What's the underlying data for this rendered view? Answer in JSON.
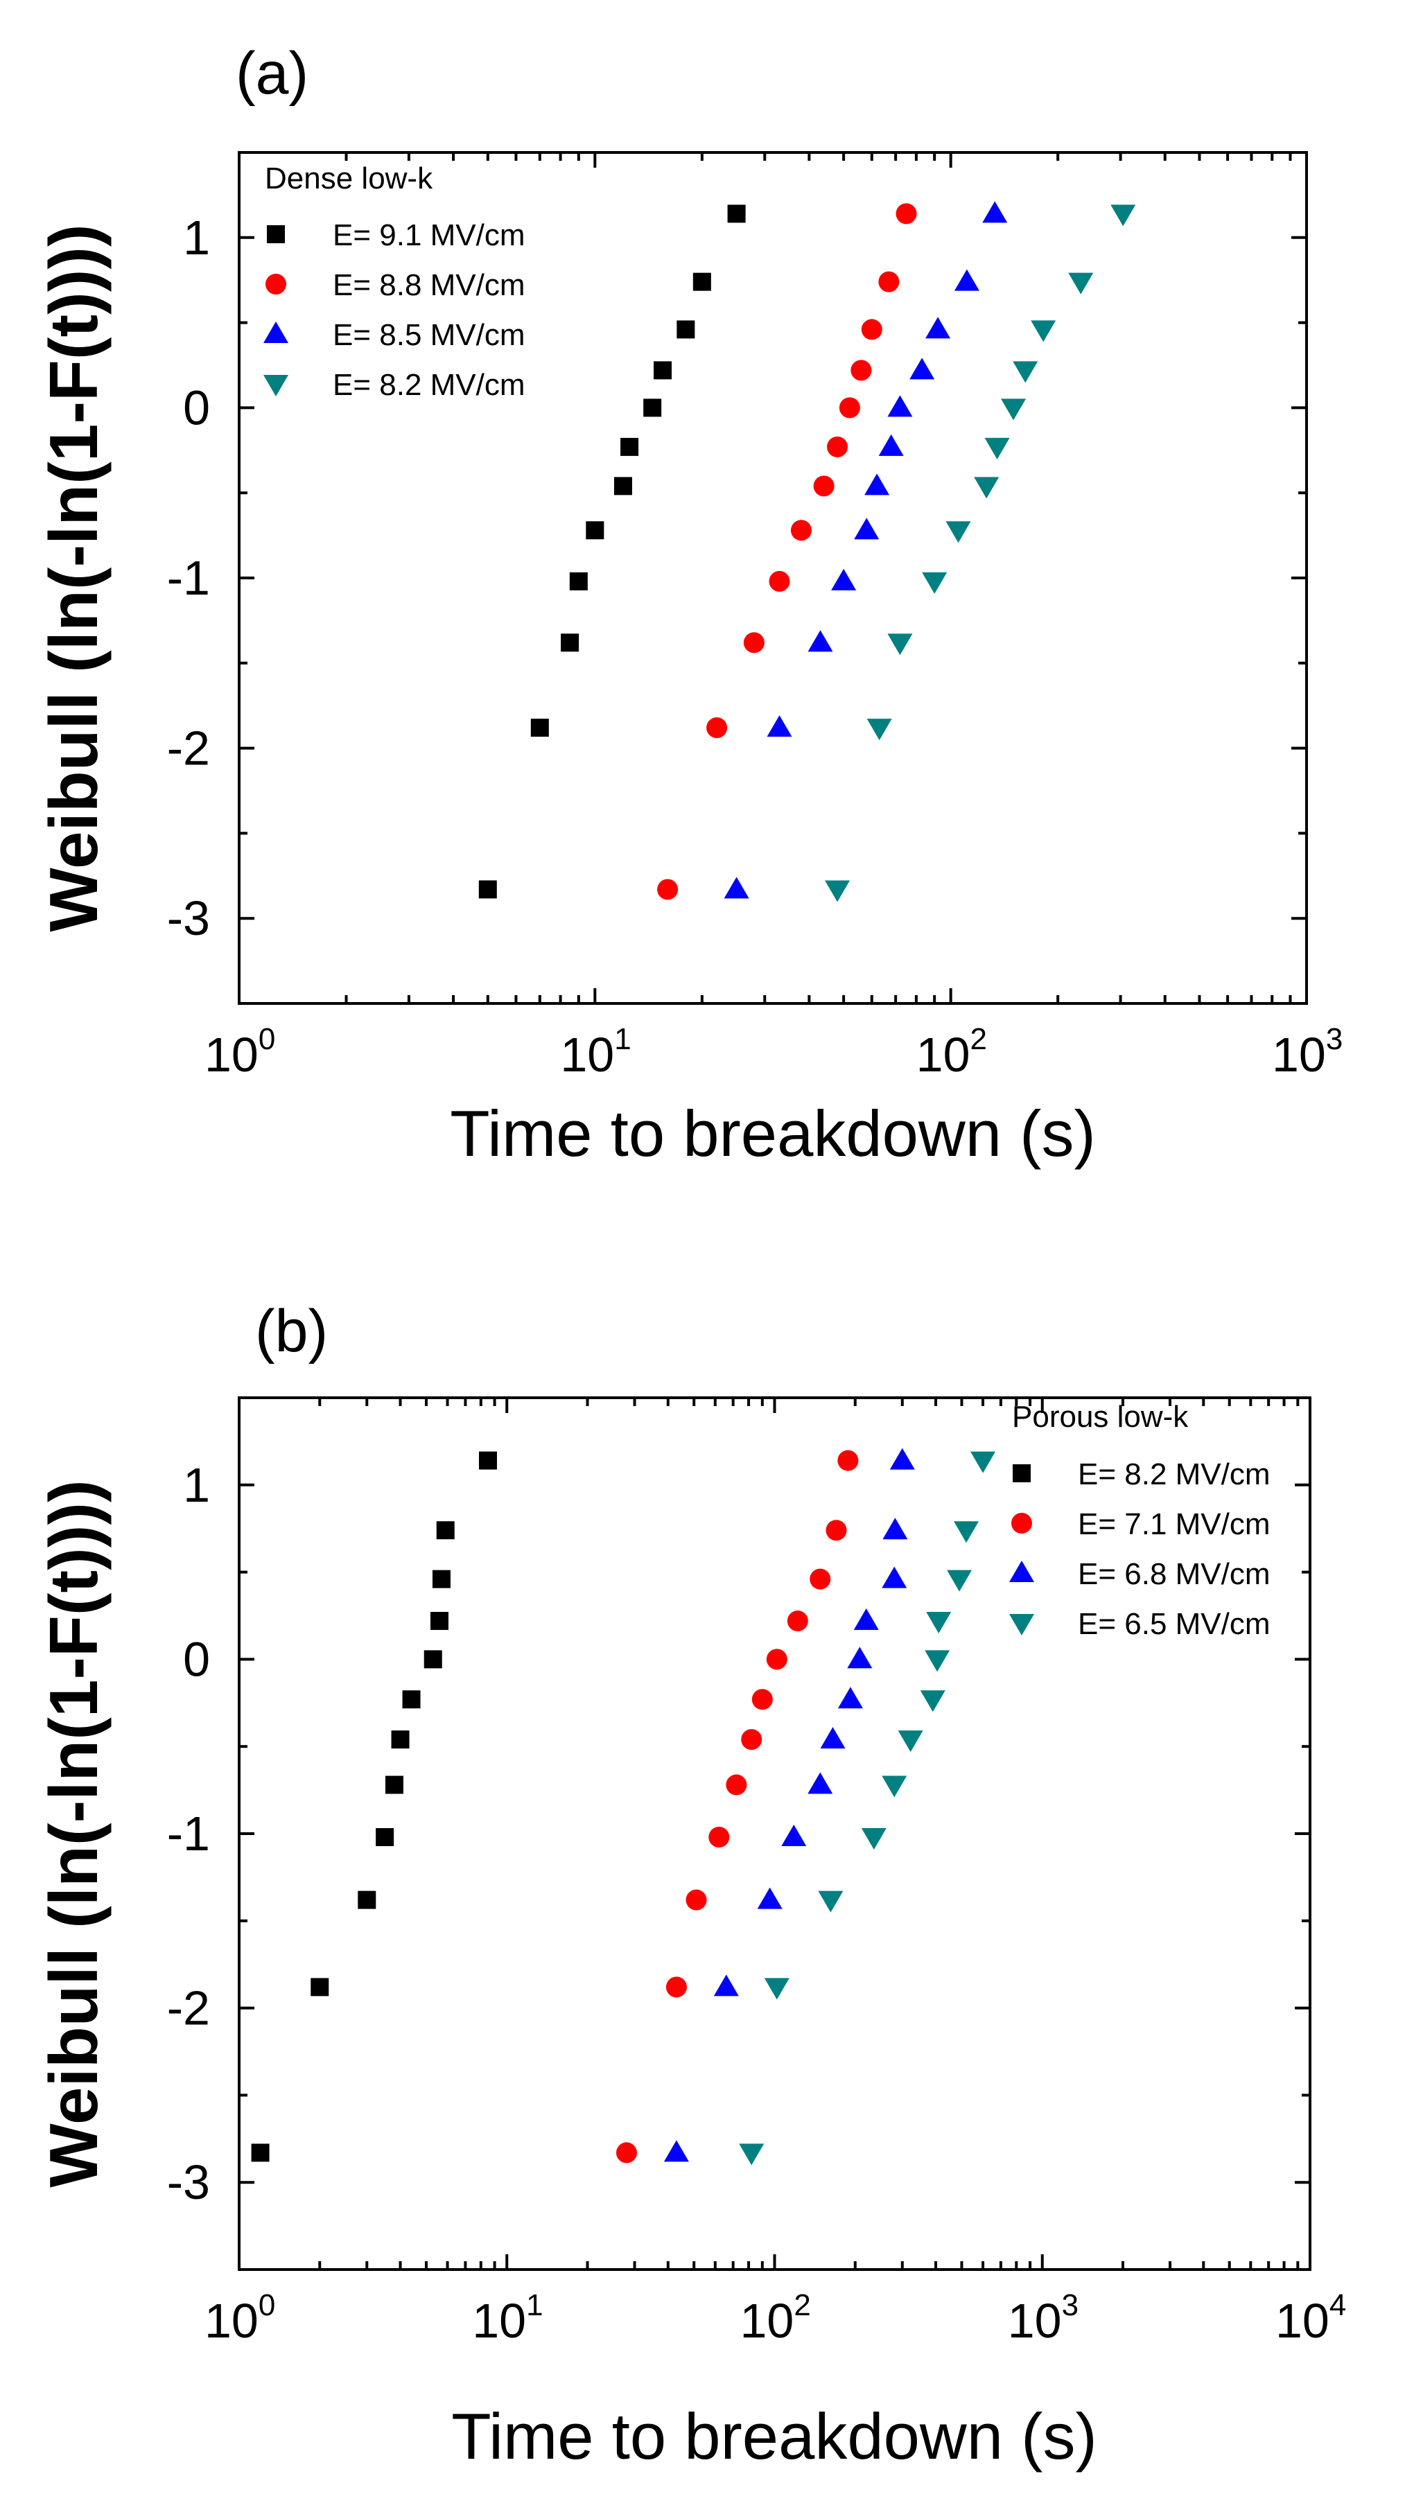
{
  "chart_data": [
    {
      "type": "scatter",
      "panel_label": "(a)",
      "xscale": "log",
      "xlim": [
        1,
        1000
      ],
      "ylim": [
        -3.5,
        1.5
      ],
      "xlabel": "Time to breakdown (s)",
      "ylabel": "Weibull (ln(-ln(1-F(t))))",
      "x_tick_labels": [
        {
          "base": "10",
          "exp": "0",
          "value": 1
        },
        {
          "base": "10",
          "exp": "1",
          "value": 10
        },
        {
          "base": "10",
          "exp": "2",
          "value": 100
        },
        {
          "base": "10",
          "exp": "3",
          "value": 1000
        }
      ],
      "y_ticks": [
        {
          "label": "1",
          "value": 1
        },
        {
          "label": "0",
          "value": 0
        },
        {
          "label": "-1",
          "value": -1
        },
        {
          "label": "-2",
          "value": -2
        },
        {
          "label": "-3",
          "value": -3
        }
      ],
      "legend_title": "Dense low-k",
      "legend_position": "top-left",
      "series": [
        {
          "name": "E= 9.1 MV/cm",
          "marker": "square",
          "color": "#000000",
          "points": [
            [
              5.0,
              -2.83
            ],
            [
              7.0,
              -1.88
            ],
            [
              8.5,
              -1.38
            ],
            [
              9.0,
              -1.02
            ],
            [
              10.0,
              -0.72
            ],
            [
              12.0,
              -0.46
            ],
            [
              12.5,
              -0.23
            ],
            [
              14.5,
              0.0
            ],
            [
              15.5,
              0.22
            ],
            [
              18.0,
              0.46
            ],
            [
              20.0,
              0.74
            ],
            [
              25.0,
              1.14
            ]
          ]
        },
        {
          "name": "E= 8.8 MV/cm",
          "marker": "circle",
          "color": "#ff0000",
          "points": [
            [
              16.0,
              -2.83
            ],
            [
              22.0,
              -1.88
            ],
            [
              28.0,
              -1.38
            ],
            [
              33.0,
              -1.02
            ],
            [
              38.0,
              -0.72
            ],
            [
              44.0,
              -0.46
            ],
            [
              48.0,
              -0.23
            ],
            [
              52.0,
              0.0
            ],
            [
              56.0,
              0.22
            ],
            [
              60.0,
              0.46
            ],
            [
              67.0,
              0.74
            ],
            [
              75.0,
              1.14
            ]
          ]
        },
        {
          "name": "E= 8.5 MV/cm",
          "marker": "triangle-up",
          "color": "#0000ff",
          "points": [
            [
              25.0,
              -2.83
            ],
            [
              33.0,
              -1.88
            ],
            [
              43.0,
              -1.38
            ],
            [
              50.0,
              -1.02
            ],
            [
              58.0,
              -0.72
            ],
            [
              62.0,
              -0.46
            ],
            [
              68.0,
              -0.23
            ],
            [
              72.0,
              0.0
            ],
            [
              83.0,
              0.22
            ],
            [
              92.0,
              0.46
            ],
            [
              111.0,
              0.74
            ],
            [
              133.0,
              1.14
            ]
          ]
        },
        {
          "name": "E= 8.2 MV/cm",
          "marker": "triangle-down",
          "color": "#008080",
          "points": [
            [
              48.0,
              -2.83
            ],
            [
              63.0,
              -1.88
            ],
            [
              72.0,
              -1.38
            ],
            [
              90.0,
              -1.02
            ],
            [
              105.0,
              -0.72
            ],
            [
              126.0,
              -0.46
            ],
            [
              135.0,
              -0.23
            ],
            [
              150.0,
              0.0
            ],
            [
              162.0,
              0.22
            ],
            [
              182.0,
              0.46
            ],
            [
              232.0,
              0.74
            ],
            [
              305.0,
              1.14
            ]
          ]
        }
      ]
    },
    {
      "type": "scatter",
      "panel_label": "(b)",
      "xscale": "log",
      "xlim": [
        1,
        10000
      ],
      "ylim": [
        -3.5,
        1.5
      ],
      "xlabel": "Time to breakdown (s)",
      "ylabel": "Weibull (ln(-ln(1-F(t))))",
      "x_tick_labels": [
        {
          "base": "10",
          "exp": "0",
          "value": 1
        },
        {
          "base": "10",
          "exp": "1",
          "value": 10
        },
        {
          "base": "10",
          "exp": "2",
          "value": 100
        },
        {
          "base": "10",
          "exp": "3",
          "value": 1000
        },
        {
          "base": "10",
          "exp": "4",
          "value": 10000
        }
      ],
      "y_ticks": [
        {
          "label": "1",
          "value": 1
        },
        {
          "label": "0",
          "value": 0
        },
        {
          "label": "-1",
          "value": -1
        },
        {
          "label": "-2",
          "value": -2
        },
        {
          "label": "-3",
          "value": -3
        }
      ],
      "legend_title": "Porous low-k",
      "legend_position": "top-right",
      "series": [
        {
          "name": "E= 8.2 MV/cm",
          "marker": "square",
          "color": "#000000",
          "points": [
            [
              1.2,
              -2.83
            ],
            [
              2.0,
              -1.88
            ],
            [
              3.0,
              -1.38
            ],
            [
              3.5,
              -1.02
            ],
            [
              3.8,
              -0.72
            ],
            [
              4.0,
              -0.46
            ],
            [
              4.4,
              -0.23
            ],
            [
              5.3,
              0.0
            ],
            [
              5.6,
              0.22
            ],
            [
              5.7,
              0.46
            ],
            [
              5.9,
              0.74
            ],
            [
              8.5,
              1.14
            ]
          ]
        },
        {
          "name": "E= 7.1 MV/cm",
          "marker": "circle",
          "color": "#ff0000",
          "points": [
            [
              28.0,
              -2.83
            ],
            [
              43.0,
              -1.88
            ],
            [
              51.0,
              -1.38
            ],
            [
              62.0,
              -1.02
            ],
            [
              72.0,
              -0.72
            ],
            [
              82.0,
              -0.46
            ],
            [
              90.0,
              -0.23
            ],
            [
              102.0,
              0.0
            ],
            [
              122.0,
              0.22
            ],
            [
              148.0,
              0.46
            ],
            [
              170.0,
              0.74
            ],
            [
              188.0,
              1.14
            ]
          ]
        },
        {
          "name": "E= 6.8 MV/cm",
          "marker": "triangle-up",
          "color": "#0000ff",
          "points": [
            [
              43.0,
              -2.83
            ],
            [
              66.0,
              -1.88
            ],
            [
              96.0,
              -1.38
            ],
            [
              118.0,
              -1.02
            ],
            [
              148.0,
              -0.72
            ],
            [
              165.0,
              -0.46
            ],
            [
              192.0,
              -0.23
            ],
            [
              208.0,
              0.0
            ],
            [
              220.0,
              0.22
            ],
            [
              280.0,
              0.46
            ],
            [
              282.0,
              0.74
            ],
            [
              300.0,
              1.14
            ]
          ]
        },
        {
          "name": "E= 6.5 MV/cm",
          "marker": "triangle-down",
          "color": "#008080",
          "points": [
            [
              82.0,
              -2.83
            ],
            [
              102.0,
              -1.88
            ],
            [
              162.0,
              -1.38
            ],
            [
              235.0,
              -1.02
            ],
            [
              280.0,
              -0.72
            ],
            [
              322.0,
              -0.46
            ],
            [
              390.0,
              -0.23
            ],
            [
              405.0,
              0.0
            ],
            [
              410.0,
              0.22
            ],
            [
              490.0,
              0.46
            ],
            [
              520.0,
              0.74
            ],
            [
              600.0,
              1.14
            ]
          ]
        }
      ]
    }
  ]
}
